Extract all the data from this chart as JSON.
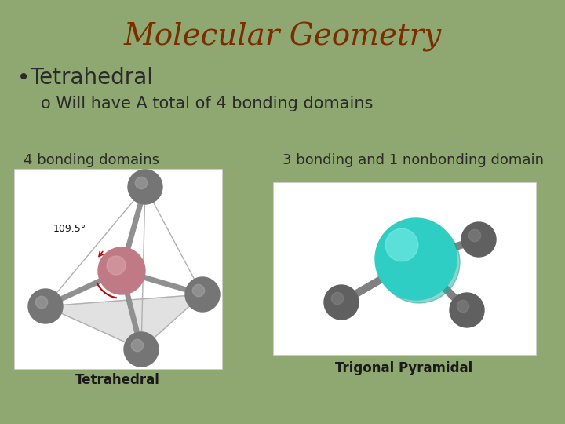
{
  "background_color": "#8fa872",
  "title": "Molecular Geometry",
  "title_color": "#7b2d00",
  "title_fontsize": 28,
  "bullet_text": "Tetrahedral",
  "bullet_color": "#2a2a2a",
  "bullet_fontsize": 20,
  "sub_bullet_text": "o Will have A total of 4 bonding domains",
  "sub_bullet_color": "#2a2a2a",
  "sub_bullet_fontsize": 15,
  "label_left": "4 bonding domains",
  "label_right": "3 bonding and 1 nonbonding domain",
  "label_color": "#2a2a2a",
  "label_fontsize": 13,
  "caption_left": "Tetrahedral",
  "caption_right": "Trigonal Pyramidal",
  "caption_color": "#1a1a1a",
  "caption_fontsize": 12,
  "box_facecolor": "#ffffff"
}
